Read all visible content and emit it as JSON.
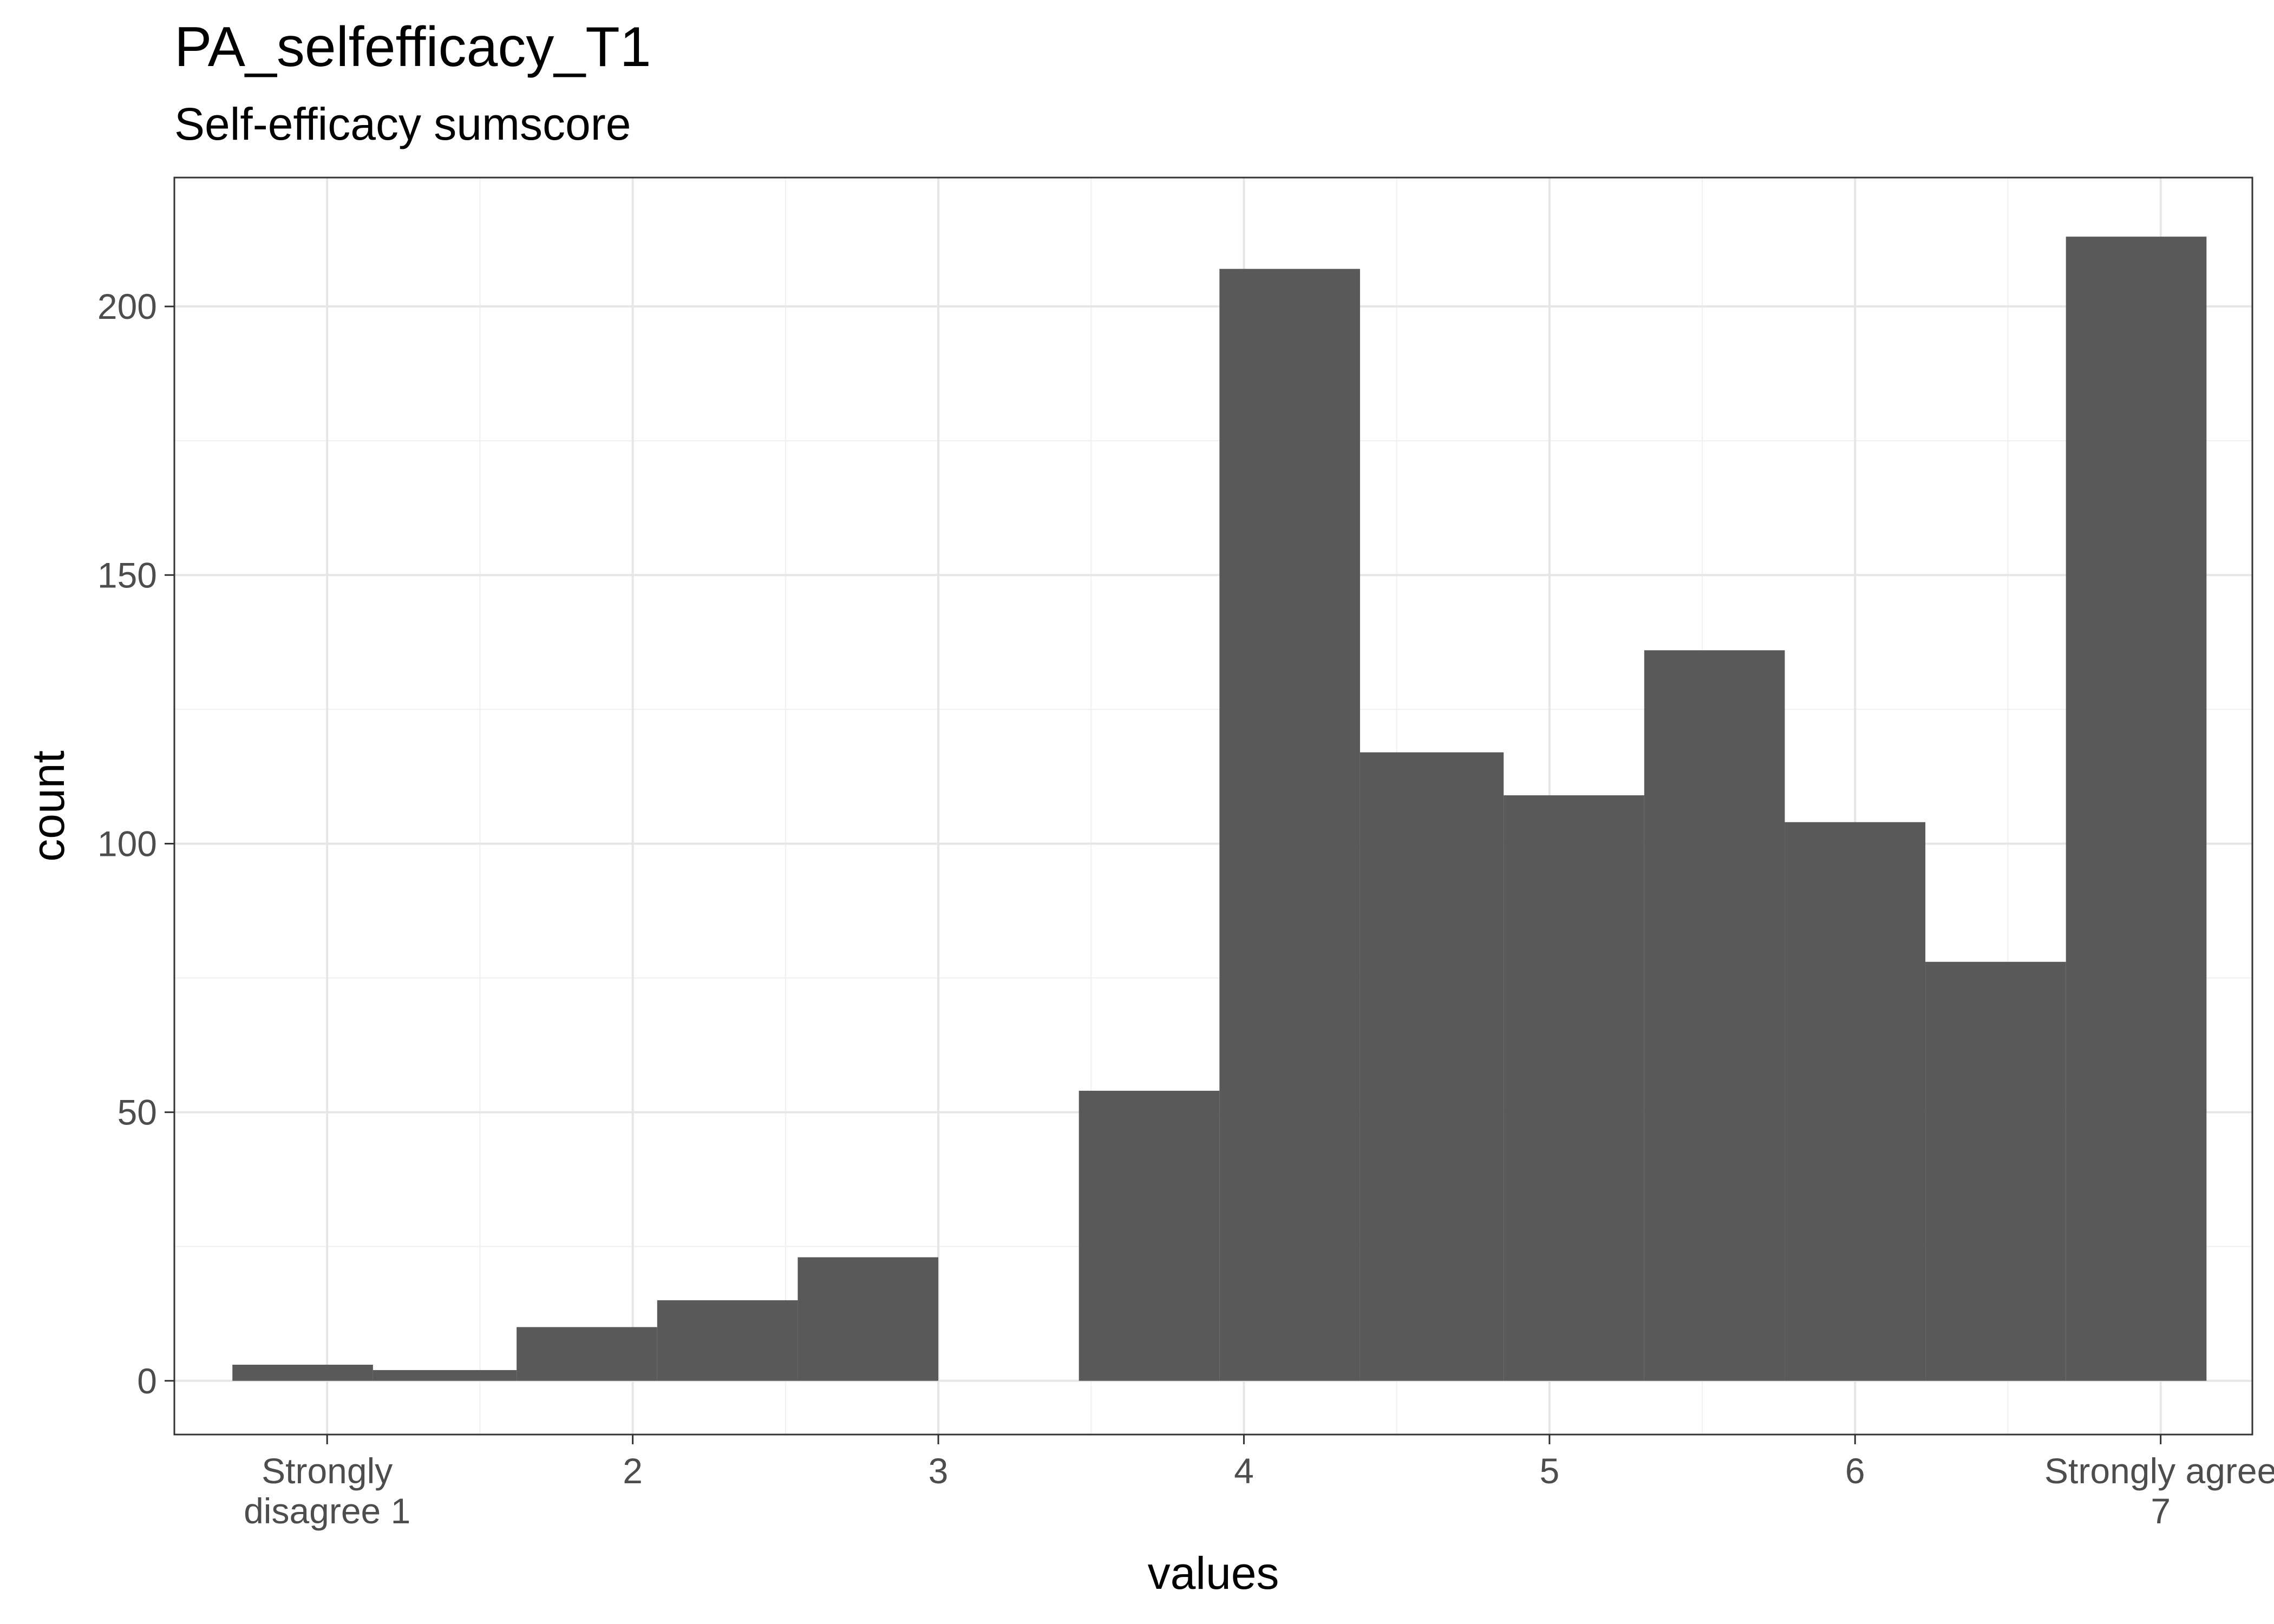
{
  "chart_data": {
    "type": "bar",
    "title": "PA_selfefficacy_T1",
    "subtitle": "Self-efficacy sumscore",
    "xlabel": "values",
    "ylabel": "count",
    "xlim": [
      0.5,
      7.3
    ],
    "ylim": [
      -10,
      224
    ],
    "x_ticks": [
      {
        "value": 1,
        "label": [
          "Strongly",
          "disagree 1"
        ]
      },
      {
        "value": 2,
        "label": [
          "2"
        ]
      },
      {
        "value": 3,
        "label": [
          "3"
        ]
      },
      {
        "value": 4,
        "label": [
          "4"
        ]
      },
      {
        "value": 5,
        "label": [
          "5"
        ]
      },
      {
        "value": 6,
        "label": [
          "6"
        ]
      },
      {
        "value": 7,
        "label": [
          "Strongly agree",
          "7"
        ]
      }
    ],
    "y_ticks": [
      0,
      50,
      100,
      150,
      200
    ],
    "grid": true,
    "bar_color": "#595959",
    "bins": [
      {
        "x0": 0.69,
        "x1": 1.15,
        "count": 3
      },
      {
        "x0": 1.15,
        "x1": 1.62,
        "count": 2
      },
      {
        "x0": 1.62,
        "x1": 2.08,
        "count": 10
      },
      {
        "x0": 2.08,
        "x1": 2.54,
        "count": 15
      },
      {
        "x0": 2.54,
        "x1": 3.0,
        "count": 23
      },
      {
        "x0": 3.0,
        "x1": 3.46,
        "count": 0
      },
      {
        "x0": 3.46,
        "x1": 3.92,
        "count": 54
      },
      {
        "x0": 3.92,
        "x1": 4.38,
        "count": 207
      },
      {
        "x0": 4.38,
        "x1": 4.85,
        "count": 117
      },
      {
        "x0": 4.85,
        "x1": 5.31,
        "count": 109
      },
      {
        "x0": 5.31,
        "x1": 5.77,
        "count": 136
      },
      {
        "x0": 5.77,
        "x1": 6.23,
        "count": 104
      },
      {
        "x0": 6.23,
        "x1": 6.69,
        "count": 78
      },
      {
        "x0": 6.69,
        "x1": 7.15,
        "count": 213
      }
    ]
  }
}
